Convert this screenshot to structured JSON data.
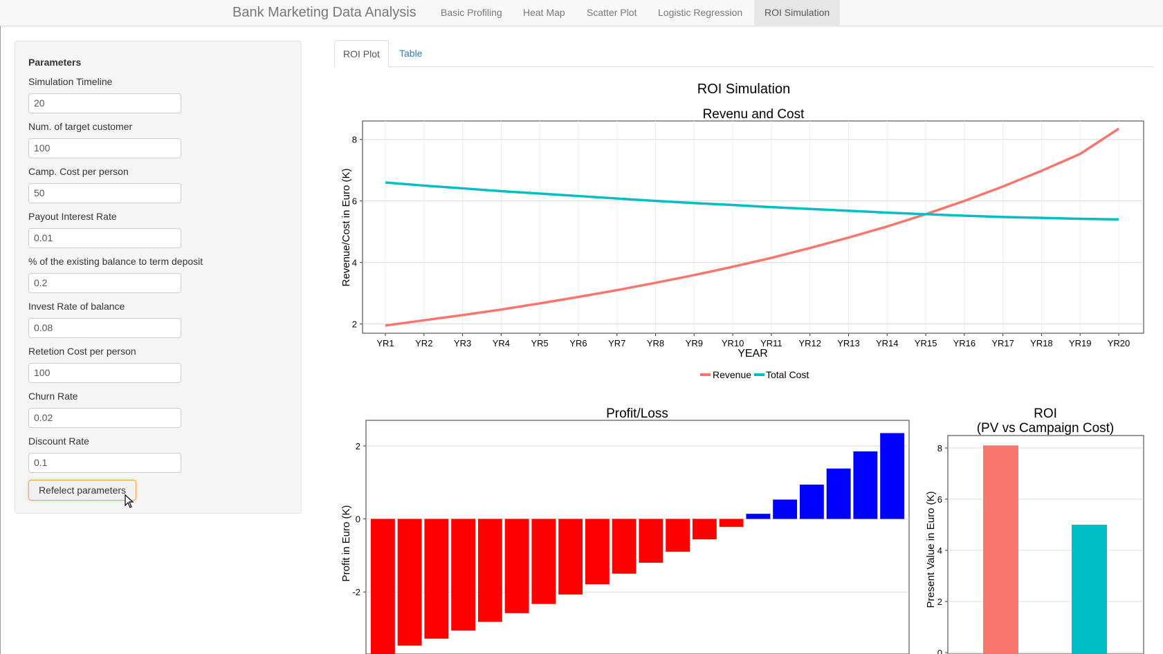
{
  "navbar": {
    "brand": "Bank Marketing Data Analysis",
    "items": [
      {
        "label": "Basic Profiling"
      },
      {
        "label": "Heat Map"
      },
      {
        "label": "Scatter Plot"
      },
      {
        "label": "Logistic Regression"
      },
      {
        "label": "ROI Simulation",
        "active": true
      }
    ]
  },
  "sidebar": {
    "title": "Parameters",
    "fields": [
      {
        "label": "Simulation Timeline",
        "value": "20"
      },
      {
        "label": "Num. of target customer",
        "value": "100"
      },
      {
        "label": "Camp. Cost per person",
        "value": "50"
      },
      {
        "label": "Payout Interest Rate",
        "value": "0.01"
      },
      {
        "label": "% of the existing balance to term deposit",
        "value": "0.2"
      },
      {
        "label": "Invest Rate of balance",
        "value": "0.08"
      },
      {
        "label": "Retetion Cost per person",
        "value": "100"
      },
      {
        "label": "Churn Rate",
        "value": "0.02"
      },
      {
        "label": "Discount Rate",
        "value": "0.1"
      }
    ],
    "button_label": "Refelect parameters"
  },
  "tabs": [
    {
      "label": "ROI Plot",
      "active": true
    },
    {
      "label": "Table"
    }
  ],
  "main_title": "ROI Simulation",
  "colors": {
    "revenue": "#F8766D",
    "cost": "#00BFC4",
    "loss": "#FF0000",
    "profit": "#0000FF",
    "roi_pv": "#F8766D",
    "roi_cost": "#00BFC4"
  },
  "chart_data": [
    {
      "type": "line",
      "title": "Revenu and Cost",
      "xlabel": "YEAR",
      "ylabel": "Revenue/Cost in Euro (K)",
      "categories": [
        "YR1",
        "YR2",
        "YR3",
        "YR4",
        "YR5",
        "YR6",
        "YR7",
        "YR8",
        "YR9",
        "YR10",
        "YR11",
        "YR12",
        "YR13",
        "YR14",
        "YR15",
        "YR16",
        "YR17",
        "YR18",
        "YR19",
        "YR20"
      ],
      "ylim": [
        1.7,
        8.6
      ],
      "yticks": [
        2,
        4,
        6,
        8
      ],
      "series": [
        {
          "name": "Revenue",
          "values": [
            1.95,
            2.12,
            2.29,
            2.47,
            2.67,
            2.88,
            3.1,
            3.34,
            3.59,
            3.86,
            4.15,
            4.47,
            4.81,
            5.17,
            5.57,
            6.0,
            6.47,
            6.98,
            7.53,
            8.35
          ]
        },
        {
          "name": "Total Cost",
          "values": [
            6.6,
            6.5,
            6.41,
            6.32,
            6.24,
            6.16,
            6.08,
            6.0,
            5.93,
            5.87,
            5.8,
            5.74,
            5.68,
            5.62,
            5.57,
            5.52,
            5.48,
            5.45,
            5.42,
            5.4
          ]
        }
      ],
      "legend": "bottom",
      "grid": true
    },
    {
      "type": "bar",
      "title": "Profit/Loss",
      "ylabel": "Profit in Euro (K)",
      "ylim": [
        -3.7,
        2.7
      ],
      "yticks": [
        -2,
        0,
        2
      ],
      "values": [
        -3.78,
        -3.47,
        -3.28,
        -3.06,
        -2.82,
        -2.58,
        -2.33,
        -2.07,
        -1.79,
        -1.5,
        -1.2,
        -0.9,
        -0.56,
        -0.22,
        0.14,
        0.53,
        0.94,
        1.38,
        1.85,
        2.35
      ],
      "grid": true
    },
    {
      "type": "bar",
      "title": "ROI\n(PV vs Campaign Cost)",
      "ylabel": "Present Value in Euro (K)",
      "ylim": [
        0,
        8.45
      ],
      "yticks": [
        0,
        2,
        4,
        6,
        8
      ],
      "values": [
        8.1,
        5.0
      ],
      "grid": true
    }
  ],
  "chart_titles": {
    "line": "Revenu and Cost",
    "profit": "Profit/Loss",
    "roi_line1": "ROI",
    "roi_line2": "(PV vs Campaign Cost)"
  },
  "axis_labels": {
    "line_x": "YEAR",
    "line_y": "Revenue/Cost in Euro (K)",
    "profit_y": "Profit in Euro (K)",
    "roi_y": "Present Value in Euro (K)"
  },
  "legend": {
    "revenue": "Revenue",
    "cost": "Total Cost"
  }
}
